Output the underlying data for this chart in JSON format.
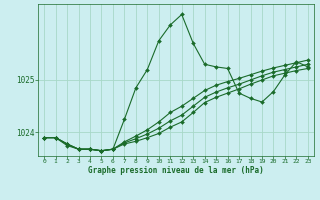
{
  "bg_color": "#cceef0",
  "grid_color": "#a8d8c8",
  "line_color": "#1a6b2a",
  "marker_color": "#1a6b2a",
  "xlabel": "Graphe pression niveau de la mer (hPa)",
  "xlim": [
    -0.5,
    23.5
  ],
  "ylim": [
    1023.55,
    1026.45
  ],
  "yticks": [
    1024,
    1025
  ],
  "xticks": [
    0,
    1,
    2,
    3,
    4,
    5,
    6,
    7,
    8,
    9,
    10,
    11,
    12,
    13,
    14,
    15,
    16,
    17,
    18,
    19,
    20,
    21,
    22,
    23
  ],
  "series1_x": [
    0,
    1,
    2,
    3,
    4,
    5,
    6,
    7,
    8,
    9,
    10,
    11,
    12,
    13,
    14,
    15,
    16,
    17,
    18,
    19,
    20,
    21,
    22,
    23
  ],
  "series1_y": [
    1023.9,
    1023.9,
    1023.75,
    1023.68,
    1023.68,
    1023.65,
    1023.68,
    1024.25,
    1024.85,
    1025.2,
    1025.75,
    1026.05,
    1026.25,
    1025.7,
    1025.3,
    1025.25,
    1025.22,
    1024.75,
    1024.65,
    1024.58,
    1024.78,
    1025.1,
    1025.35,
    1025.25
  ],
  "series2_x": [
    0,
    1,
    2,
    3,
    4,
    5,
    6,
    7,
    8,
    9,
    10,
    11,
    12,
    13,
    14,
    15,
    16,
    17,
    18,
    19,
    20,
    21,
    22,
    23
  ],
  "series2_y": [
    1023.9,
    1023.9,
    1023.78,
    1023.68,
    1023.68,
    1023.65,
    1023.68,
    1023.82,
    1023.93,
    1024.05,
    1024.2,
    1024.38,
    1024.5,
    1024.65,
    1024.8,
    1024.9,
    1024.97,
    1025.03,
    1025.1,
    1025.17,
    1025.23,
    1025.28,
    1025.33,
    1025.38
  ],
  "series3_x": [
    0,
    1,
    2,
    3,
    4,
    5,
    6,
    7,
    8,
    9,
    10,
    11,
    12,
    13,
    14,
    15,
    16,
    17,
    18,
    19,
    20,
    21,
    22,
    23
  ],
  "series3_y": [
    1023.9,
    1023.9,
    1023.78,
    1023.68,
    1023.68,
    1023.65,
    1023.68,
    1023.8,
    1023.88,
    1023.97,
    1024.08,
    1024.22,
    1024.33,
    1024.5,
    1024.67,
    1024.77,
    1024.85,
    1024.92,
    1025.0,
    1025.08,
    1025.15,
    1025.2,
    1025.25,
    1025.3
  ],
  "series4_x": [
    0,
    1,
    2,
    3,
    4,
    5,
    6,
    7,
    8,
    9,
    10,
    11,
    12,
    13,
    14,
    15,
    16,
    17,
    18,
    19,
    20,
    21,
    22,
    23
  ],
  "series4_y": [
    1023.9,
    1023.9,
    1023.78,
    1023.68,
    1023.68,
    1023.65,
    1023.68,
    1023.78,
    1023.83,
    1023.9,
    1023.98,
    1024.1,
    1024.2,
    1024.38,
    1024.57,
    1024.67,
    1024.75,
    1024.83,
    1024.92,
    1025.0,
    1025.08,
    1025.13,
    1025.18,
    1025.22
  ]
}
